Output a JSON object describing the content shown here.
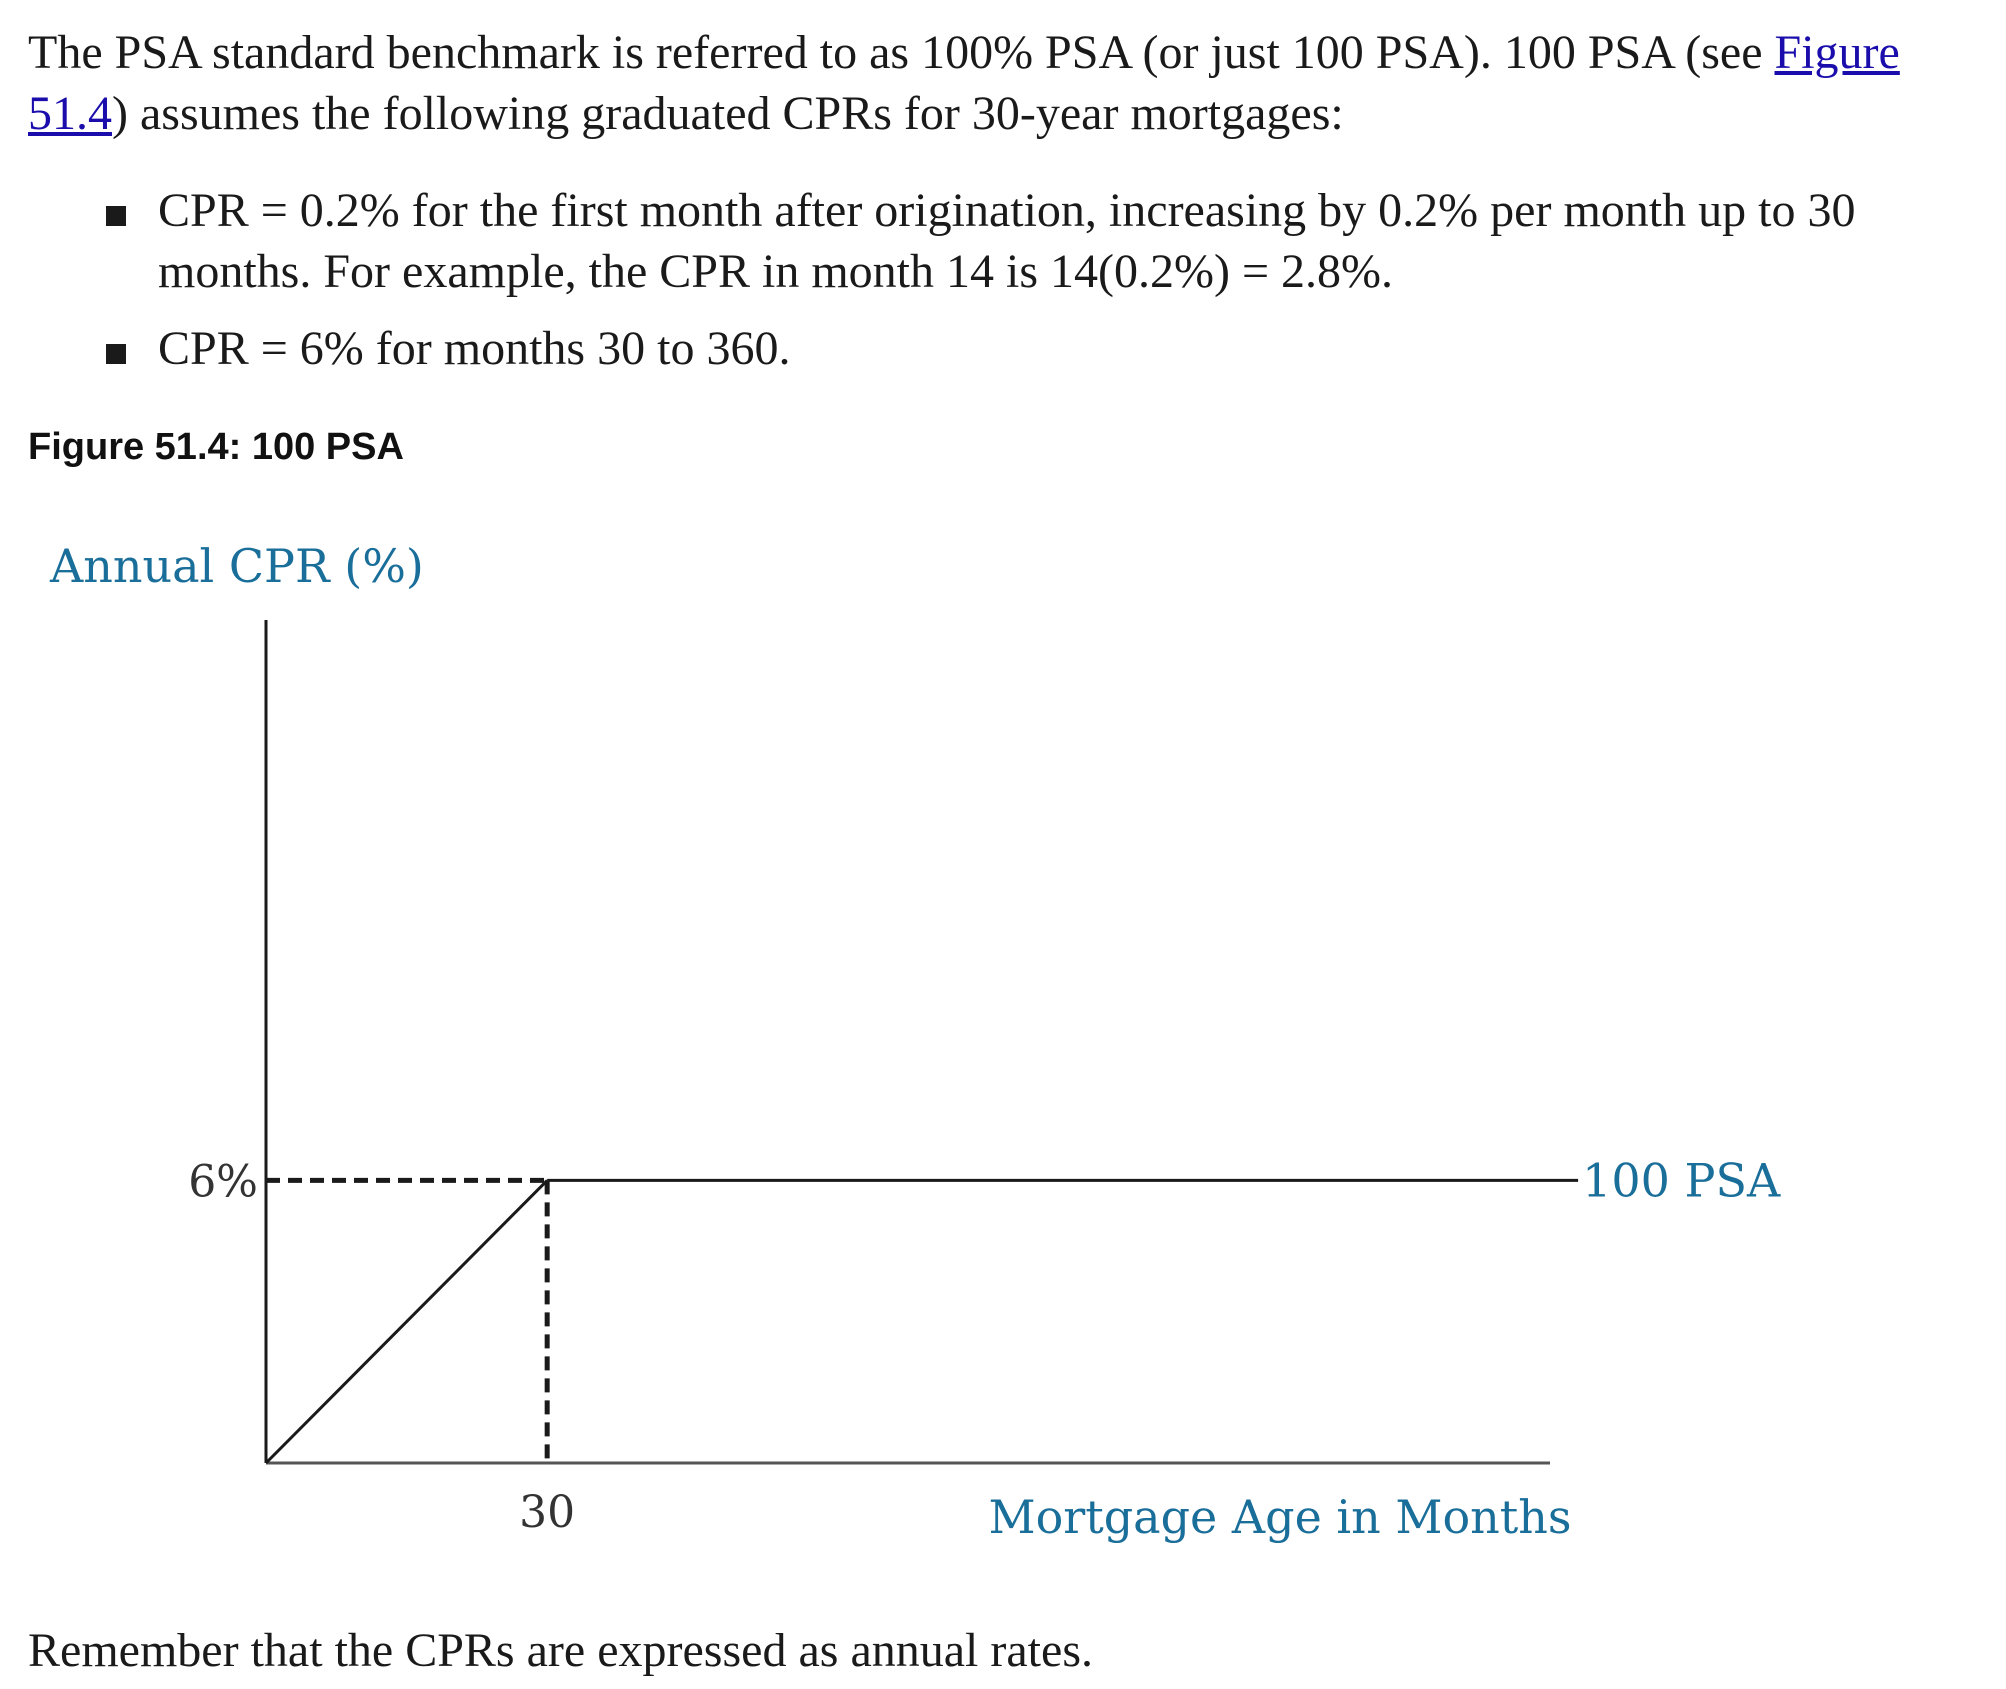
{
  "text": {
    "para_part1": "The PSA standard benchmark is referred to as 100% PSA (or just 100 PSA). 100 PSA (see ",
    "para_link": "Figure 51.4",
    "para_part2": ") assumes the following graduated CPRs for 30-year mortgages:",
    "bullets": [
      "CPR = 0.2% for the first month after origination, increasing by 0.2% per month up to 30 months. For example, the CPR in month 14 is 14(0.2%) = 2.8%.",
      "CPR = 6% for months 30 to 360."
    ],
    "figure_caption": "Figure 51.4: 100 PSA",
    "footer": "Remember that the CPRs are expressed as annual rates."
  },
  "chart_data": {
    "type": "line",
    "ylabel": "Annual CPR (%)",
    "xlabel": "Mortgage Age in Months",
    "x_ticks": [
      "30"
    ],
    "y_ticks": [
      "6%"
    ],
    "series": [
      {
        "name": "100 PSA",
        "x": [
          0,
          30,
          140
        ],
        "y": [
          0,
          6,
          6
        ]
      }
    ],
    "reference_x": 30,
    "reference_y": 6,
    "xlim": [
      0,
      137
    ],
    "ylim": [
      0,
      17.9
    ],
    "colors": {
      "label": "#1a6e9a",
      "line": "#1a1a1a"
    }
  }
}
